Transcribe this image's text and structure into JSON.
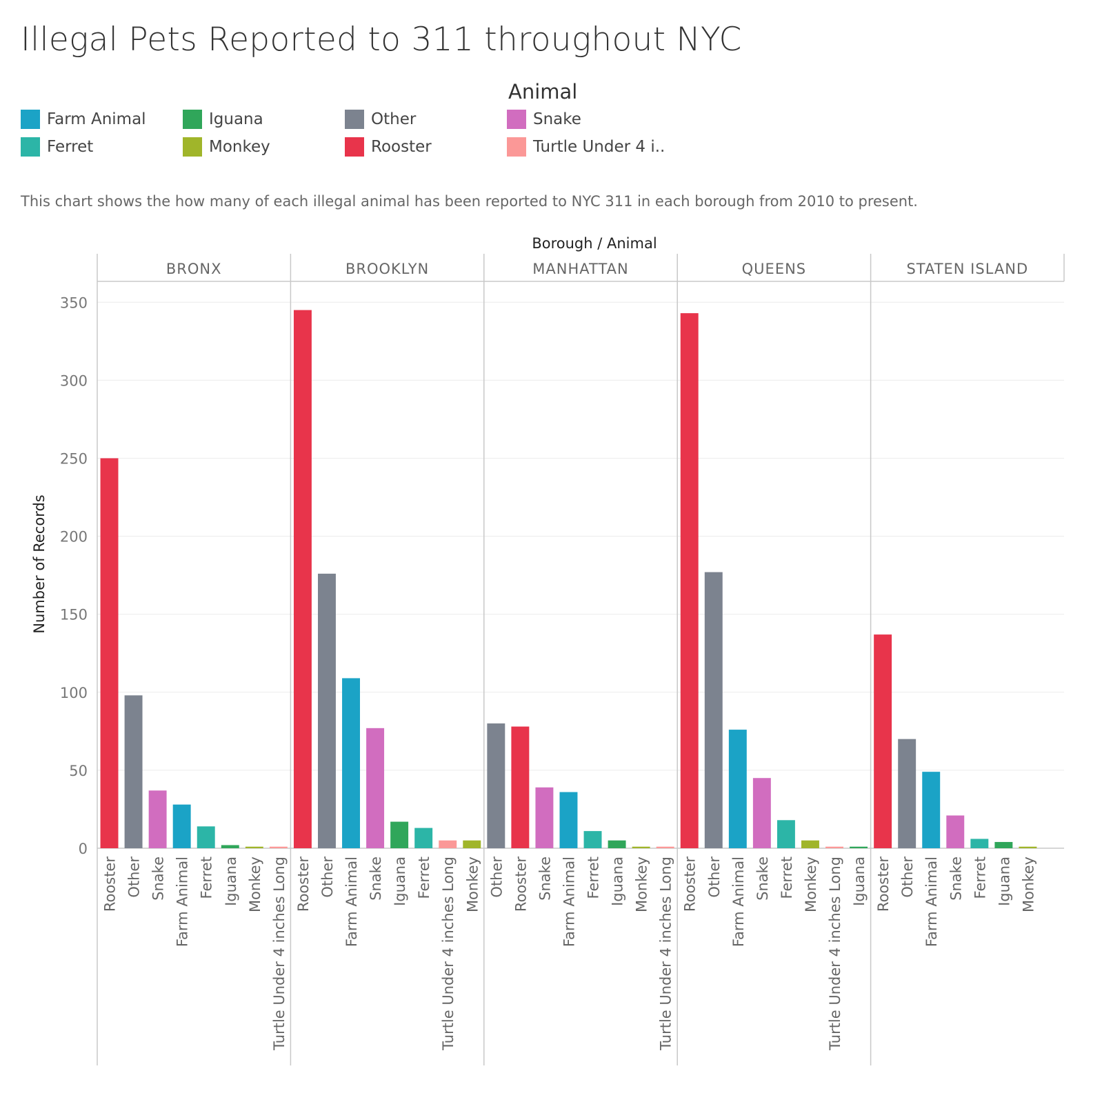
{
  "title": "Illegal Pets Reported to 311 throughout NYC",
  "subtitle": "This chart shows the how many of each illegal animal has been reported to NYC 311 in each borough from 2010 to present.",
  "legend": {
    "title": "Animal",
    "items": [
      {
        "label": "Farm Animal",
        "color": "#1ba3c6"
      },
      {
        "label": "Ferret",
        "color": "#2cb5a7"
      },
      {
        "label": "Iguana",
        "color": "#30a65a"
      },
      {
        "label": "Monkey",
        "color": "#a0b52a"
      },
      {
        "label": "Other",
        "color": "#7c838f"
      },
      {
        "label": "Rooster",
        "color": "#e8344b"
      },
      {
        "label": "Snake",
        "color": "#d16dbf"
      },
      {
        "label": "Turtle Under 4 i..",
        "color": "#fb9897"
      }
    ]
  },
  "chart_data": {
    "type": "bar",
    "column_header": "Borough / Animal",
    "ylabel": "Number of Records",
    "ylim": [
      0,
      360
    ],
    "yticks": [
      0,
      50,
      100,
      150,
      200,
      250,
      300,
      350
    ],
    "grid": true,
    "colors": {
      "Farm Animal": "#1ba3c6",
      "Ferret": "#2cb5a7",
      "Iguana": "#30a65a",
      "Monkey": "#a0b52a",
      "Other": "#7c838f",
      "Rooster": "#e8344b",
      "Snake": "#d16dbf",
      "Turtle Under 4 inches Long": "#fb9897"
    },
    "panels": [
      {
        "borough": "BRONX",
        "bars": [
          {
            "animal": "Rooster",
            "value": 250
          },
          {
            "animal": "Other",
            "value": 98
          },
          {
            "animal": "Snake",
            "value": 37
          },
          {
            "animal": "Farm Animal",
            "value": 28
          },
          {
            "animal": "Ferret",
            "value": 14
          },
          {
            "animal": "Iguana",
            "value": 2
          },
          {
            "animal": "Monkey",
            "value": 1
          },
          {
            "animal": "Turtle Under 4 inches Long",
            "value": 1
          }
        ]
      },
      {
        "borough": "BROOKLYN",
        "bars": [
          {
            "animal": "Rooster",
            "value": 345
          },
          {
            "animal": "Other",
            "value": 176
          },
          {
            "animal": "Farm Animal",
            "value": 109
          },
          {
            "animal": "Snake",
            "value": 77
          },
          {
            "animal": "Iguana",
            "value": 17
          },
          {
            "animal": "Ferret",
            "value": 13
          },
          {
            "animal": "Turtle Under 4 inches Long",
            "value": 5
          },
          {
            "animal": "Monkey",
            "value": 5
          }
        ]
      },
      {
        "borough": "MANHATTAN",
        "bars": [
          {
            "animal": "Other",
            "value": 80
          },
          {
            "animal": "Rooster",
            "value": 78
          },
          {
            "animal": "Snake",
            "value": 39
          },
          {
            "animal": "Farm Animal",
            "value": 36
          },
          {
            "animal": "Ferret",
            "value": 11
          },
          {
            "animal": "Iguana",
            "value": 5
          },
          {
            "animal": "Monkey",
            "value": 1
          },
          {
            "animal": "Turtle Under 4 inches Long",
            "value": 1
          }
        ]
      },
      {
        "borough": "QUEENS",
        "bars": [
          {
            "animal": "Rooster",
            "value": 343
          },
          {
            "animal": "Other",
            "value": 177
          },
          {
            "animal": "Farm Animal",
            "value": 76
          },
          {
            "animal": "Snake",
            "value": 45
          },
          {
            "animal": "Ferret",
            "value": 18
          },
          {
            "animal": "Monkey",
            "value": 5
          },
          {
            "animal": "Turtle Under 4 inches Long",
            "value": 1
          },
          {
            "animal": "Iguana",
            "value": 1
          }
        ]
      },
      {
        "borough": "STATEN ISLAND",
        "bars": [
          {
            "animal": "Rooster",
            "value": 137
          },
          {
            "animal": "Other",
            "value": 70
          },
          {
            "animal": "Farm Animal",
            "value": 49
          },
          {
            "animal": "Snake",
            "value": 21
          },
          {
            "animal": "Ferret",
            "value": 6
          },
          {
            "animal": "Iguana",
            "value": 4
          },
          {
            "animal": "Monkey",
            "value": 1
          }
        ]
      }
    ]
  }
}
